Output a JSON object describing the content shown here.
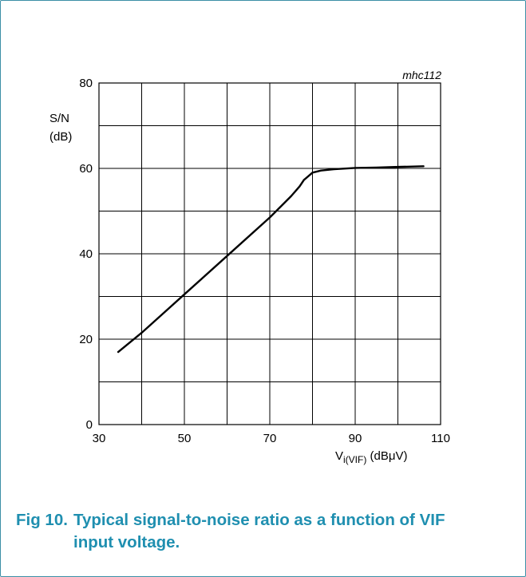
{
  "chart_data": {
    "type": "line",
    "chart_code": "mhc112",
    "ylabel_lines": [
      "S/N",
      "(dB)"
    ],
    "xlabel": {
      "base": "V",
      "subscript": "i(VIF)",
      "unit": " (dBμV)"
    },
    "xlim": [
      30,
      110
    ],
    "ylim": [
      0,
      80
    ],
    "x_ticks": [
      30,
      50,
      70,
      90,
      110
    ],
    "y_ticks": [
      0,
      20,
      40,
      60,
      80
    ],
    "x_grid_step": 10,
    "y_grid_step": 10,
    "grid": true,
    "series": [
      {
        "x": [
          34.5,
          40,
          50,
          60,
          70,
          75,
          77,
          78,
          80,
          82,
          85,
          90,
          95,
          100,
          106
        ],
        "y": [
          17,
          21.5,
          30.5,
          39.5,
          48.5,
          53.5,
          55.8,
          57.3,
          59,
          59.5,
          59.8,
          60.1,
          60.2,
          60.35,
          60.5
        ]
      }
    ]
  },
  "caption": {
    "fig_number": "Fig 10.",
    "text_line1": "Typical signal-to-noise ratio as a function of VIF",
    "text_line2": "input voltage."
  }
}
